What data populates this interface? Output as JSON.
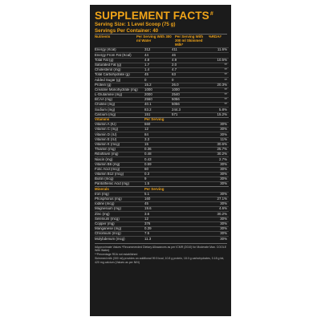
{
  "title": "SUPPLEMENT FACTS",
  "title_mark": "#",
  "serving_size": "Serving Size: 1 Level Scoop (75 g)",
  "servings_per_container": "Servings Per Container: 40",
  "headers": {
    "nutrients": "Nutrients",
    "col1": "Per Serving With 300 ml Water",
    "col2": "Per Serving With 300 ml Skimmed Milk*",
    "col3": "%RDA#"
  },
  "rows": [
    [
      "Energy (Kcal)",
      "312",
      "411",
      "11.6%"
    ],
    [
      "Energy From Fat (Kcal)",
      "44",
      "46",
      ""
    ],
    [
      "Total Fat (g)",
      "4.8",
      "4.9",
      "10.5%"
    ],
    [
      "Saturated Fat (g)",
      "1.7",
      "2.0",
      "**"
    ],
    [
      "Cholesterol (mg)",
      "1.4",
      "4.7",
      "**"
    ],
    [
      "Total Carbohydrate (g)",
      "45",
      "63",
      "**"
    ],
    [
      "Added Sugar (g)",
      "0",
      "0",
      "**"
    ],
    [
      "Protein (g)",
      "15.2",
      "26.0",
      "20.3%"
    ],
    [
      "Creatine Monohydrate (mg)",
      "1000",
      "1000",
      "**"
    ],
    [
      "L-Glutamine (mg)",
      "2000",
      "2540",
      "**"
    ],
    [
      "BCAA (mg)",
      "2560",
      "5056",
      "**"
    ],
    [
      "Choline (mg)",
      "40.1",
      "5056",
      "**"
    ],
    [
      "Sodium (mg)",
      "83.2",
      "244.3",
      "5.8%"
    ],
    [
      "Calcium (mg)",
      "151",
      "571",
      "15.2%"
    ]
  ],
  "vitamins": {
    "heading": "Vitamins",
    "col_heading": "Per Serving",
    "rows": [
      [
        "Vitamin A (IU)",
        "660",
        "",
        "30%"
      ],
      [
        "Vitamin C (mg)",
        "12",
        "",
        "30%"
      ],
      [
        "Vitamin D (IU)",
        "84",
        "",
        "30%"
      ],
      [
        "Vitamin E (IU)",
        "3.3",
        "",
        "11%"
      ],
      [
        "Vitamin K (mcg)",
        "15",
        "",
        "30.6%"
      ],
      [
        "Thiamin (mg)",
        "0.36",
        "",
        "25.7%"
      ],
      [
        "Riboflavin (mg)",
        "0.48",
        "",
        "30.2%"
      ],
      [
        "Niacin (mg)",
        "0.43",
        "",
        "2.7%"
      ],
      [
        "Vitamin B6 (mg)",
        "0.59",
        "",
        "30%"
      ],
      [
        "Folic Acid (mcg)",
        "60",
        "",
        "30%"
      ],
      [
        "Vitamin B12 (mcg)",
        "0.3",
        "",
        "30%"
      ],
      [
        "Biotin (mcg)",
        "9",
        "",
        "30%"
      ],
      [
        "Pantothenic Acid (mg)",
        "1.5",
        "",
        "30%"
      ]
    ]
  },
  "minerals": {
    "heading": "Minerals",
    "col_heading": "Per Serving",
    "rows": [
      [
        "Iron (mg)",
        "5.1",
        "",
        "30%"
      ],
      [
        "Phosphorus (mg)",
        "160",
        "",
        "27.1%"
      ],
      [
        "Iodine (mcg)",
        "45",
        "",
        "30%"
      ],
      [
        "Magnesium (mg)",
        "19.6",
        "",
        "4.6%"
      ],
      [
        "Zinc (mg)",
        "3.6",
        "",
        "30.2%"
      ],
      [
        "Selenium (mcg)",
        "12",
        "",
        "30%"
      ],
      [
        "Copper (mg)",
        "376",
        "",
        "30%"
      ],
      [
        "Manganese (mg)",
        "0.39",
        "",
        "30%"
      ],
      [
        "Chromium (mcg)",
        "7.5",
        "",
        "30%"
      ],
      [
        "Molybdenum (mcg)",
        "11.3",
        "",
        "30%"
      ]
    ]
  },
  "footnotes": [
    "#Approximate Values  *Recommended Dietary Allowances as per ICMR (2010) for Moderate Man. COOLE With Water)",
    "**Percentage RDA not established",
    "Skimmed milk (300 ml) provides an additional 99.5 kcal, 10.8 g protein, 18.0 g carbohydrates, 0.18 g fat, 420 mg calcium (Values as per NIN)"
  ]
}
